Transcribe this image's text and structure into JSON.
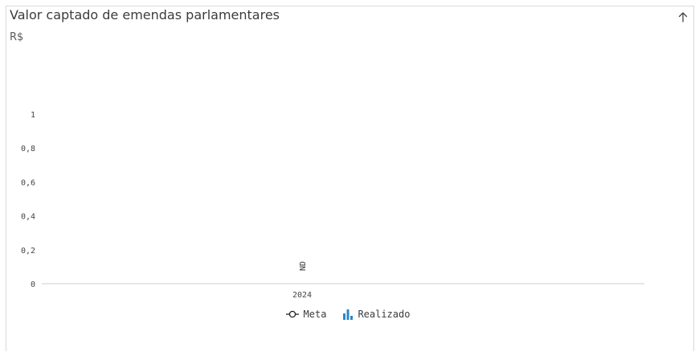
{
  "header": {
    "title": "Valor captado de emendas parlamentares",
    "unit": "R$",
    "collapse_icon": "arrow-up-icon"
  },
  "chart_data": {
    "type": "bar",
    "categories": [
      "2024"
    ],
    "series": [
      {
        "name": "Realizado",
        "values": [
          null
        ],
        "data_label": "ND",
        "color": "#2a88c8"
      },
      {
        "name": "Meta",
        "values": [
          null
        ]
      }
    ],
    "yticks": [
      "1",
      "0,8",
      "0,6",
      "0,4",
      "0,2",
      "0"
    ],
    "ylim": [
      0,
      1
    ],
    "grid": false,
    "legend": "bottom-center"
  },
  "legend": {
    "meta_label": "Meta",
    "realizado_label": "Realizado",
    "realizado_color": "#2a88c8"
  }
}
